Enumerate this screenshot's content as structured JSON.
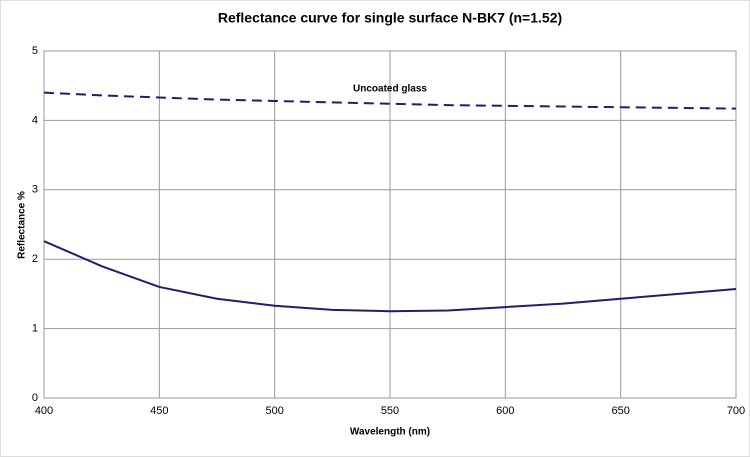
{
  "chart_data": {
    "type": "line",
    "title": "Reflectance curve for single surface N-BK7 (n=1.52)",
    "x_label": "Wavelength (nm)",
    "y_label": "Reflectance %",
    "x": [
      400,
      425,
      450,
      475,
      500,
      525,
      550,
      575,
      600,
      625,
      650,
      675,
      700
    ],
    "series": [
      {
        "name": "Uncoated glass",
        "color": "#1f1f6e",
        "dashed": true,
        "values": [
          4.4,
          4.36,
          4.33,
          4.3,
          4.28,
          4.26,
          4.24,
          4.22,
          4.21,
          4.2,
          4.19,
          4.18,
          4.17
        ]
      },
      {
        "color": "#1f1f6e",
        "dashed": false,
        "values": [
          2.26,
          1.9,
          1.6,
          1.43,
          1.33,
          1.27,
          1.25,
          1.26,
          1.31,
          1.36,
          1.43,
          1.5,
          1.57
        ]
      }
    ],
    "xlim": [
      400,
      700
    ],
    "xticks": [
      400,
      450,
      500,
      550,
      600,
      650,
      700
    ],
    "ylim": [
      0,
      5
    ],
    "yticks": [
      0,
      1,
      2,
      3,
      4,
      5
    ],
    "grid": true
  }
}
